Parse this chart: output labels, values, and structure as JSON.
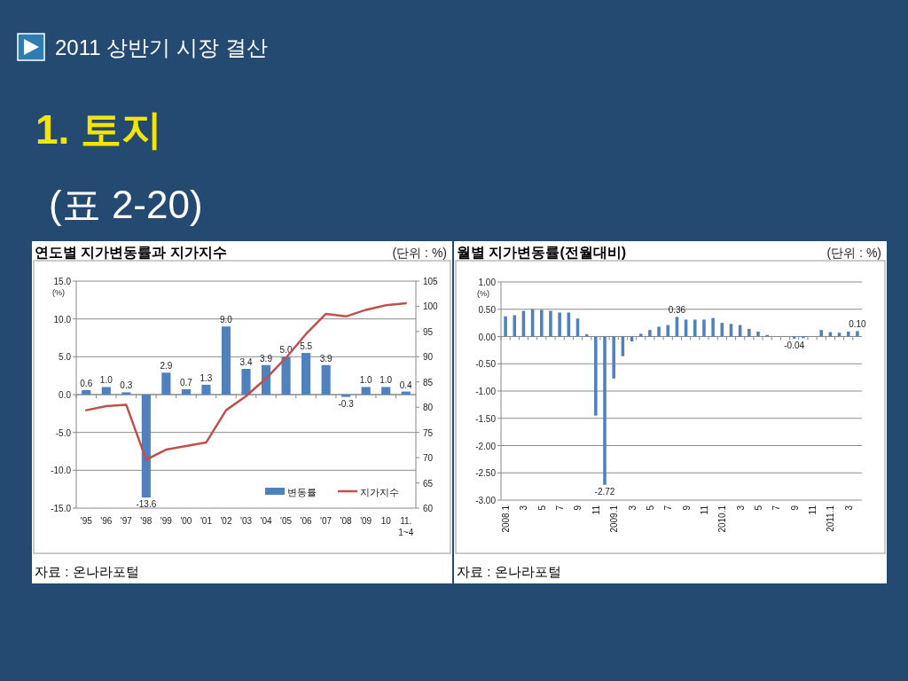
{
  "chart_data": [
    {
      "type": "other",
      "title": "2011 상반기 시장 결산",
      "subtitle": "1. 토지",
      "annotations": [
        "(표 2-20)"
      ]
    },
    {
      "type": "bar",
      "title": "연도별 지가변동률과 지가지수",
      "subtitle": "(단위 : %)",
      "ylabel": "(%)",
      "annotations": [
        "자료 : 온나라포털"
      ],
      "categories": [
        "'95",
        "'96",
        "'97",
        "'98",
        "'99",
        "'00",
        "'01",
        "'02",
        "'03",
        "'04",
        "'05",
        "'06",
        "'07",
        "'08",
        "'09",
        "10",
        "11. 1~4"
      ],
      "ylim": [
        -15,
        15
      ],
      "yticks": [
        {
          "value": 15,
          "label": "15.0"
        },
        {
          "value": 10,
          "label": "10.0"
        },
        {
          "value": 5,
          "label": "5.0"
        },
        {
          "value": 0,
          "label": "0.0"
        },
        {
          "value": -5,
          "label": "-5.0"
        },
        {
          "value": -10,
          "label": "-10.0"
        },
        {
          "value": -15,
          "label": "-15.0"
        }
      ],
      "y2lim": [
        60,
        105
      ],
      "y2ticks": [
        60,
        65,
        70,
        75,
        80,
        85,
        90,
        95,
        100,
        105
      ],
      "grid": "y",
      "legend": "bottom right",
      "series": [
        {
          "name": "변동률",
          "type": "bar",
          "color": "#4f81bd",
          "values": [
            0.6,
            1.0,
            0.3,
            -13.6,
            2.9,
            0.7,
            1.3,
            9.0,
            3.4,
            3.9,
            5.0,
            5.5,
            3.9,
            -0.3,
            1.0,
            1.0,
            0.4
          ],
          "value_labels": [
            "0.6",
            "1.0",
            "0.3",
            "-13.6",
            "2.9",
            "0.7",
            "1.3",
            "9.0",
            "3.4",
            "3.9",
            "5.0",
            "5.5",
            "3.9",
            "-0.3",
            "1.0",
            "1.0",
            "0.4"
          ]
        },
        {
          "name": "지가지수",
          "type": "line",
          "axis": "y2",
          "color": "#c0504d",
          "values": [
            79.4,
            80.2,
            80.5,
            69.6,
            71.6,
            72.3,
            73.0,
            79.4,
            82.2,
            85.7,
            89.8,
            94.5,
            98.5,
            98.0,
            99.3,
            100.2,
            100.6
          ]
        }
      ]
    },
    {
      "type": "bar",
      "title": "월별 지가변동률(전월대비)",
      "subtitle": "(단위 : %)",
      "ylabel": "(%)",
      "annotations": [
        "자료 : 온나라포털"
      ],
      "categories": [
        "2008.1",
        null,
        "3",
        null,
        "5",
        null,
        "7",
        null,
        "9",
        null,
        "11",
        null,
        "2009.1",
        null,
        "3",
        null,
        "5",
        null,
        "7",
        null,
        "9",
        null,
        "11",
        null,
        "2010.1",
        null,
        "3",
        null,
        "5",
        null,
        "7",
        null,
        "9",
        null,
        "11",
        null,
        "2011.1",
        null,
        "3",
        null
      ],
      "ylim": [
        -3,
        1
      ],
      "yticks": [
        {
          "value": 1,
          "label": "1.00"
        },
        {
          "value": 0.5,
          "label": "0.50"
        },
        {
          "value": 0,
          "label": "0.00"
        },
        {
          "value": -0.5,
          "label": "-0.50"
        },
        {
          "value": -1,
          "label": "-1.00"
        },
        {
          "value": -1.5,
          "label": "-1.50"
        },
        {
          "value": -2,
          "label": "-2.00"
        },
        {
          "value": -2.5,
          "label": "-2.50"
        },
        {
          "value": -3,
          "label": "-3.00"
        }
      ],
      "grid": "y",
      "series": [
        {
          "type": "bar",
          "color": "#4f81bd",
          "values": [
            0.37,
            0.39,
            0.47,
            0.5,
            0.49,
            0.47,
            0.44,
            0.44,
            0.33,
            0.04,
            -1.45,
            -2.72,
            -0.77,
            -0.36,
            -0.09,
            0.05,
            0.12,
            0.18,
            0.21,
            0.36,
            0.31,
            0.31,
            0.31,
            0.34,
            0.25,
            0.23,
            0.21,
            0.14,
            0.09,
            0.03,
            null,
            null,
            -0.04,
            -0.03,
            null,
            0.12,
            0.08,
            0.07,
            0.09,
            0.1
          ],
          "value_labels": [
            null,
            null,
            null,
            null,
            null,
            null,
            null,
            null,
            null,
            null,
            null,
            "-2.72",
            null,
            null,
            null,
            null,
            null,
            null,
            null,
            "0.36",
            null,
            null,
            null,
            null,
            null,
            null,
            null,
            null,
            null,
            null,
            null,
            null,
            "-0.04",
            null,
            null,
            null,
            null,
            null,
            null,
            "0.10"
          ]
        }
      ]
    }
  ]
}
